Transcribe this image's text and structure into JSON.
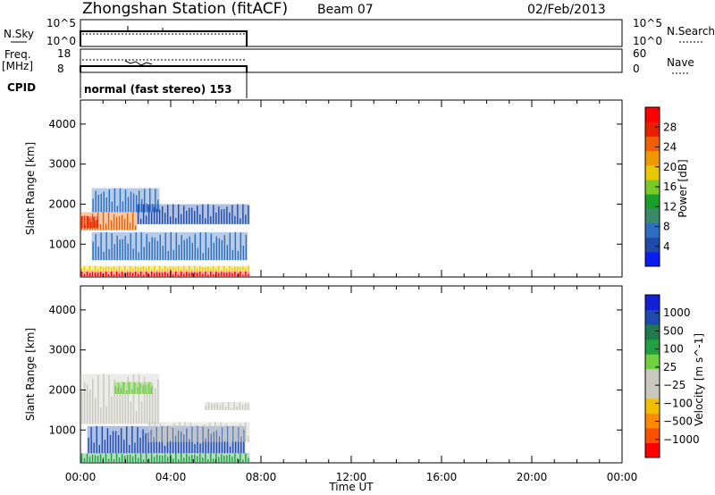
{
  "header": {
    "station": "Zhongshan Station (fitACF)",
    "beam": "Beam 07",
    "date": "02/Feb/2013"
  },
  "panels": {
    "nsky": {
      "left_label": "N.Sky",
      "left_ticks": [
        "10^5",
        "10^0"
      ],
      "right_ticks": [
        "10^5",
        "10^0"
      ],
      "right_label": "N.Search"
    },
    "freq": {
      "left_label_1": "Freq.",
      "left_label_2": "[MHz]",
      "left_ticks": [
        "18",
        "8"
      ],
      "right_ticks": [
        "60",
        "0"
      ],
      "right_label": "Nave"
    },
    "cpid": {
      "label": "CPID",
      "text": "normal (fast stereo) 153"
    }
  },
  "colors": {
    "power": [
      "#0a1cf0",
      "#1e4aa8",
      "#2d6ec0",
      "#3a8a6a",
      "#1aa02a",
      "#78c828",
      "#e8c800",
      "#f09800",
      "#f06000",
      "#e82000",
      "#ff0000"
    ],
    "velocity": [
      "#ff0000",
      "#ff5000",
      "#ff8a00",
      "#f0c000",
      "#c8c8c0",
      "#c8c8c0",
      "#70d040",
      "#20a040",
      "#207a50",
      "#1e4ab0",
      "#1420d8"
    ]
  },
  "chart_data": [
    {
      "type": "heatmap",
      "title": "",
      "xlabel": "Time UT",
      "ylabel": "Slant Range [km]",
      "x_ticks": [
        "00:00",
        "04:00",
        "08:00",
        "12:00",
        "16:00",
        "20:00",
        "00:00"
      ],
      "xlim_hours": [
        0,
        24
      ],
      "y_ticks": [
        "1000",
        "2000",
        "3000",
        "4000"
      ],
      "ylim_km": [
        180,
        4600
      ],
      "colorbar": {
        "label": "Power [dB]",
        "ticks": [
          "4",
          "8",
          "12",
          "16",
          "20",
          "24",
          "28"
        ],
        "range": [
          0,
          32
        ]
      },
      "data_extent_hours": [
        0.0,
        7.5
      ],
      "bands": [
        {
          "t0": 0.0,
          "t1": 7.5,
          "r0": 200,
          "r1": 320,
          "level": 10
        },
        {
          "t0": 0.0,
          "t1": 7.5,
          "r0": 320,
          "r1": 460,
          "level": 6
        },
        {
          "t0": 0.0,
          "t1": 2.5,
          "r0": 1350,
          "r1": 1800,
          "level": 8
        },
        {
          "t0": 0.0,
          "t1": 0.8,
          "r0": 1400,
          "r1": 1700,
          "level": 9
        },
        {
          "t0": 0.5,
          "t1": 7.4,
          "r0": 600,
          "r1": 1300,
          "level": 2
        },
        {
          "t0": 0.5,
          "t1": 3.5,
          "r0": 1800,
          "r1": 2400,
          "level": 2
        },
        {
          "t0": 2.5,
          "t1": 7.5,
          "r0": 1500,
          "r1": 2000,
          "level": 1
        }
      ]
    },
    {
      "type": "heatmap",
      "title": "",
      "xlabel": "Time UT",
      "ylabel": "Slant Range [km]",
      "x_ticks": [
        "00:00",
        "04:00",
        "08:00",
        "12:00",
        "16:00",
        "20:00",
        "00:00"
      ],
      "xlim_hours": [
        0,
        24
      ],
      "y_ticks": [
        "1000",
        "2000",
        "3000",
        "4000"
      ],
      "ylim_km": [
        180,
        4600
      ],
      "colorbar": {
        "label": "Velocity [m s^-1]",
        "ticks": [
          "-1000",
          "-500",
          "-100",
          "-25",
          "25",
          "100",
          "500",
          "1000"
        ],
        "range": [
          -1200,
          1200
        ]
      },
      "data_extent_hours": [
        0.0,
        7.5
      ],
      "bands": [
        {
          "t0": 0.0,
          "t1": 7.5,
          "r0": 200,
          "r1": 420,
          "level": 7
        },
        {
          "t0": 0.3,
          "t1": 7.3,
          "r0": 420,
          "r1": 1100,
          "level": 9
        },
        {
          "t0": 0.0,
          "t1": 3.5,
          "r0": 1150,
          "r1": 2400,
          "level": 4
        },
        {
          "t0": 3.0,
          "t1": 7.5,
          "r0": 700,
          "r1": 1200,
          "level": 4
        },
        {
          "t0": 1.5,
          "t1": 3.2,
          "r0": 1900,
          "r1": 2200,
          "level": 6
        },
        {
          "t0": 5.5,
          "t1": 7.5,
          "r0": 1500,
          "r1": 1700,
          "level": 4
        }
      ]
    }
  ]
}
